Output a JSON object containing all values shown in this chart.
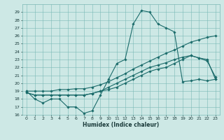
{
  "xlabel": "Humidex (Indice chaleur)",
  "bg_color": "#cde8e5",
  "grid_color": "#7ab8b5",
  "line_color": "#1a6b6a",
  "xlim": [
    -0.5,
    23.5
  ],
  "ylim": [
    16,
    30
  ],
  "yticks": [
    16,
    17,
    18,
    19,
    20,
    21,
    22,
    23,
    24,
    25,
    26,
    27,
    28,
    29
  ],
  "xticks": [
    0,
    1,
    2,
    3,
    4,
    5,
    6,
    7,
    8,
    9,
    10,
    11,
    12,
    13,
    14,
    15,
    16,
    17,
    18,
    19,
    20,
    21,
    22,
    23
  ],
  "series": [
    {
      "x": [
        0,
        1,
        2,
        3,
        4,
        5,
        6,
        7,
        8,
        9,
        10,
        11,
        12,
        13,
        14,
        15,
        16,
        17,
        18,
        19,
        20,
        21,
        22,
        23
      ],
      "y": [
        19,
        18,
        17.5,
        18,
        18,
        17,
        17,
        16.2,
        16.5,
        18.5,
        20.5,
        22.5,
        23,
        27.5,
        29.2,
        29,
        27.5,
        27,
        26.5,
        20.2,
        20.3,
        20.5,
        20.3,
        20.5
      ]
    },
    {
      "x": [
        0,
        1,
        2,
        3,
        4,
        5,
        6,
        7,
        8,
        9,
        10,
        11,
        12,
        13,
        14,
        15,
        16,
        17,
        18,
        19,
        20,
        21,
        22,
        23
      ],
      "y": [
        18.8,
        18.5,
        18.5,
        18.5,
        18.5,
        18.5,
        18.5,
        18.5,
        18.7,
        19.0,
        19.5,
        20.0,
        20.5,
        21.0,
        21.5,
        22.0,
        22.3,
        22.6,
        23.0,
        23.3,
        23.5,
        23.2,
        23.0,
        20.5
      ]
    },
    {
      "x": [
        0,
        1,
        2,
        3,
        4,
        5,
        6,
        7,
        8,
        9,
        10,
        11,
        12,
        13,
        14,
        15,
        16,
        17,
        18,
        19,
        20,
        21,
        22,
        23
      ],
      "y": [
        19.0,
        19.0,
        19.0,
        19.0,
        19.2,
        19.2,
        19.3,
        19.3,
        19.5,
        19.8,
        20.2,
        20.7,
        21.2,
        21.8,
        22.3,
        22.8,
        23.3,
        23.8,
        24.2,
        24.7,
        25.2,
        25.5,
        25.8,
        26.0
      ]
    },
    {
      "x": [
        0,
        1,
        2,
        3,
        4,
        5,
        6,
        7,
        8,
        9,
        10,
        11,
        12,
        13,
        14,
        15,
        16,
        17,
        18,
        19,
        20,
        21,
        22,
        23
      ],
      "y": [
        18.8,
        18.5,
        18.5,
        18.5,
        18.5,
        18.5,
        18.5,
        18.5,
        18.7,
        19.0,
        19.2,
        19.5,
        20.0,
        20.5,
        21.0,
        21.5,
        21.8,
        22.0,
        22.5,
        23.0,
        23.5,
        23.2,
        22.8,
        20.8
      ]
    }
  ]
}
